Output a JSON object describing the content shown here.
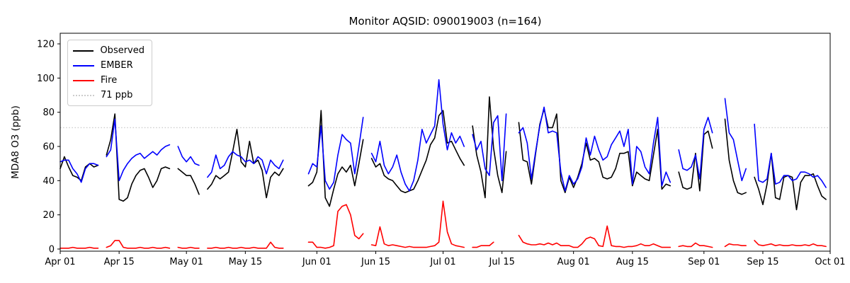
{
  "chart_data": {
    "type": "line",
    "title": "Monitor AQSID: 090019003 (n=164)",
    "ylabel": "MDA8 O3 (ppb)",
    "xlabel": "",
    "ylim": [
      -1,
      126
    ],
    "y_ticks": [
      0,
      20,
      40,
      60,
      80,
      100,
      120
    ],
    "x_range_days": 183,
    "x_ticks": [
      {
        "label": "Apr 01",
        "day": 0
      },
      {
        "label": "Apr 15",
        "day": 14
      },
      {
        "label": "May 01",
        "day": 30
      },
      {
        "label": "May 15",
        "day": 44
      },
      {
        "label": "Jun 01",
        "day": 61
      },
      {
        "label": "Jun 15",
        "day": 75
      },
      {
        "label": "Jul 01",
        "day": 91
      },
      {
        "label": "Jul 15",
        "day": 105
      },
      {
        "label": "Aug 01",
        "day": 122
      },
      {
        "label": "Aug 15",
        "day": 136
      },
      {
        "label": "Sep 01",
        "day": 153
      },
      {
        "label": "Sep 15",
        "day": 167
      },
      {
        "label": "Oct 01",
        "day": 183
      }
    ],
    "threshold": {
      "label": "71 ppb",
      "value": 71,
      "color": "#cccccc",
      "style": "dotted"
    },
    "legend_position": "upper left",
    "grid": false,
    "series": [
      {
        "name": "Observed",
        "color": "#000000",
        "values": [
          47,
          54,
          48,
          43,
          42,
          40,
          48,
          50,
          48,
          49,
          null,
          55,
          64,
          79,
          29,
          28,
          30,
          38,
          43,
          46,
          47,
          42,
          36,
          40,
          47,
          48,
          47,
          null,
          47,
          45,
          43,
          43,
          38,
          32,
          null,
          35,
          38,
          43,
          41,
          43,
          45,
          57,
          70,
          51,
          48,
          63,
          50,
          52,
          46,
          30,
          42,
          45,
          43,
          47,
          null,
          null,
          null,
          null,
          null,
          37,
          39,
          45,
          81,
          30,
          25,
          35,
          44,
          48,
          45,
          49,
          37,
          50,
          64,
          null,
          53,
          48,
          50,
          43,
          41,
          40,
          37,
          34,
          33,
          34,
          35,
          40,
          46,
          52,
          61,
          65,
          78,
          81,
          62,
          63,
          58,
          53,
          49,
          null,
          72,
          55,
          45,
          30,
          89,
          59,
          43,
          33,
          57,
          null,
          null,
          74,
          52,
          51,
          38,
          56,
          73,
          82,
          71,
          71,
          79,
          40,
          33,
          42,
          36,
          42,
          50,
          62,
          52,
          53,
          51,
          42,
          41,
          42,
          47,
          56,
          56,
          57,
          37,
          45,
          43,
          41,
          40,
          55,
          70,
          35,
          38,
          37,
          null,
          45,
          36,
          35,
          36,
          56,
          34,
          67,
          69,
          59,
          null,
          null,
          76,
          52,
          40,
          33,
          32,
          33,
          null,
          42,
          35,
          26,
          38,
          56,
          30,
          29,
          42,
          43,
          42,
          23,
          39,
          43,
          43,
          44,
          37,
          31,
          29
        ]
      },
      {
        "name": "EMBER",
        "color": "#0000ff",
        "values": [
          51,
          52,
          52,
          47,
          44,
          39,
          47,
          50,
          50,
          49,
          null,
          54,
          58,
          76,
          40,
          46,
          50,
          53,
          55,
          56,
          53,
          55,
          57,
          55,
          58,
          60,
          61,
          null,
          60,
          54,
          51,
          54,
          50,
          49,
          null,
          42,
          45,
          55,
          47,
          49,
          54,
          57,
          55,
          54,
          51,
          52,
          50,
          54,
          52,
          44,
          52,
          49,
          47,
          52,
          null,
          null,
          null,
          null,
          null,
          44,
          50,
          48,
          72,
          40,
          35,
          39,
          55,
          67,
          64,
          62,
          44,
          60,
          77,
          null,
          56,
          51,
          63,
          49,
          44,
          48,
          55,
          45,
          38,
          34,
          40,
          52,
          70,
          62,
          67,
          72,
          99,
          73,
          58,
          68,
          62,
          66,
          60,
          null,
          67,
          58,
          63,
          47,
          43,
          74,
          78,
          40,
          79,
          null,
          null,
          68,
          71,
          62,
          41,
          57,
          72,
          83,
          68,
          69,
          68,
          45,
          34,
          43,
          38,
          41,
          48,
          65,
          55,
          66,
          58,
          52,
          54,
          61,
          65,
          69,
          60,
          70,
          38,
          60,
          57,
          48,
          44,
          62,
          77,
          37,
          45,
          39,
          null,
          58,
          47,
          46,
          48,
          55,
          41,
          70,
          77,
          68,
          null,
          null,
          88,
          68,
          64,
          52,
          40,
          47,
          null,
          73,
          40,
          39,
          41,
          56,
          38,
          39,
          43,
          43,
          40,
          41,
          45,
          45,
          44,
          42,
          43,
          40,
          36
        ]
      },
      {
        "name": "Fire",
        "color": "#ff0000",
        "values": [
          0.5,
          0.5,
          0.5,
          1,
          0.5,
          0.5,
          0.5,
          1,
          0.5,
          0.5,
          null,
          1,
          2,
          5,
          5,
          1,
          0.5,
          0.5,
          0.5,
          1,
          0.5,
          0.5,
          1,
          0.5,
          0.5,
          1,
          0.5,
          null,
          1,
          0.5,
          0.5,
          1,
          0.5,
          0.5,
          null,
          0.5,
          0.5,
          1,
          0.5,
          0.5,
          1,
          0.5,
          0.5,
          1,
          0.5,
          0.5,
          1,
          0.5,
          0.5,
          0.5,
          4,
          1,
          0.5,
          0.5,
          null,
          null,
          null,
          null,
          null,
          4,
          4,
          1,
          1,
          0.5,
          1,
          2,
          22,
          25,
          26,
          20,
          8,
          6,
          9,
          null,
          2.5,
          2,
          13,
          3,
          2,
          2.5,
          2,
          1.5,
          1,
          1.5,
          1,
          1,
          1,
          1,
          1.5,
          2,
          4,
          28,
          10,
          3,
          2,
          1.5,
          1,
          null,
          1,
          1,
          2,
          2,
          2,
          4,
          null,
          null,
          null,
          null,
          null,
          8,
          4,
          3,
          2.5,
          2.5,
          3,
          2.5,
          3.5,
          2.5,
          3.5,
          2,
          2,
          2,
          1,
          1,
          3,
          6,
          7,
          6,
          2,
          1.5,
          13.5,
          2,
          1.5,
          1.5,
          1,
          1.5,
          1.5,
          2,
          3,
          2,
          2,
          3,
          2,
          1,
          1,
          1,
          null,
          1.5,
          2,
          1.5,
          1.5,
          3.5,
          2,
          2,
          1.5,
          1,
          null,
          null,
          1.5,
          3,
          2.5,
          2.5,
          2,
          2,
          null,
          5,
          2.5,
          2,
          2.5,
          3,
          2,
          2.5,
          2,
          2,
          2.5,
          2,
          2,
          2.5,
          2,
          3,
          2,
          2,
          1.5
        ]
      }
    ],
    "axes": {
      "spine_color": "#000000",
      "tick_label_color": "#000000",
      "background": "#ffffff"
    }
  }
}
